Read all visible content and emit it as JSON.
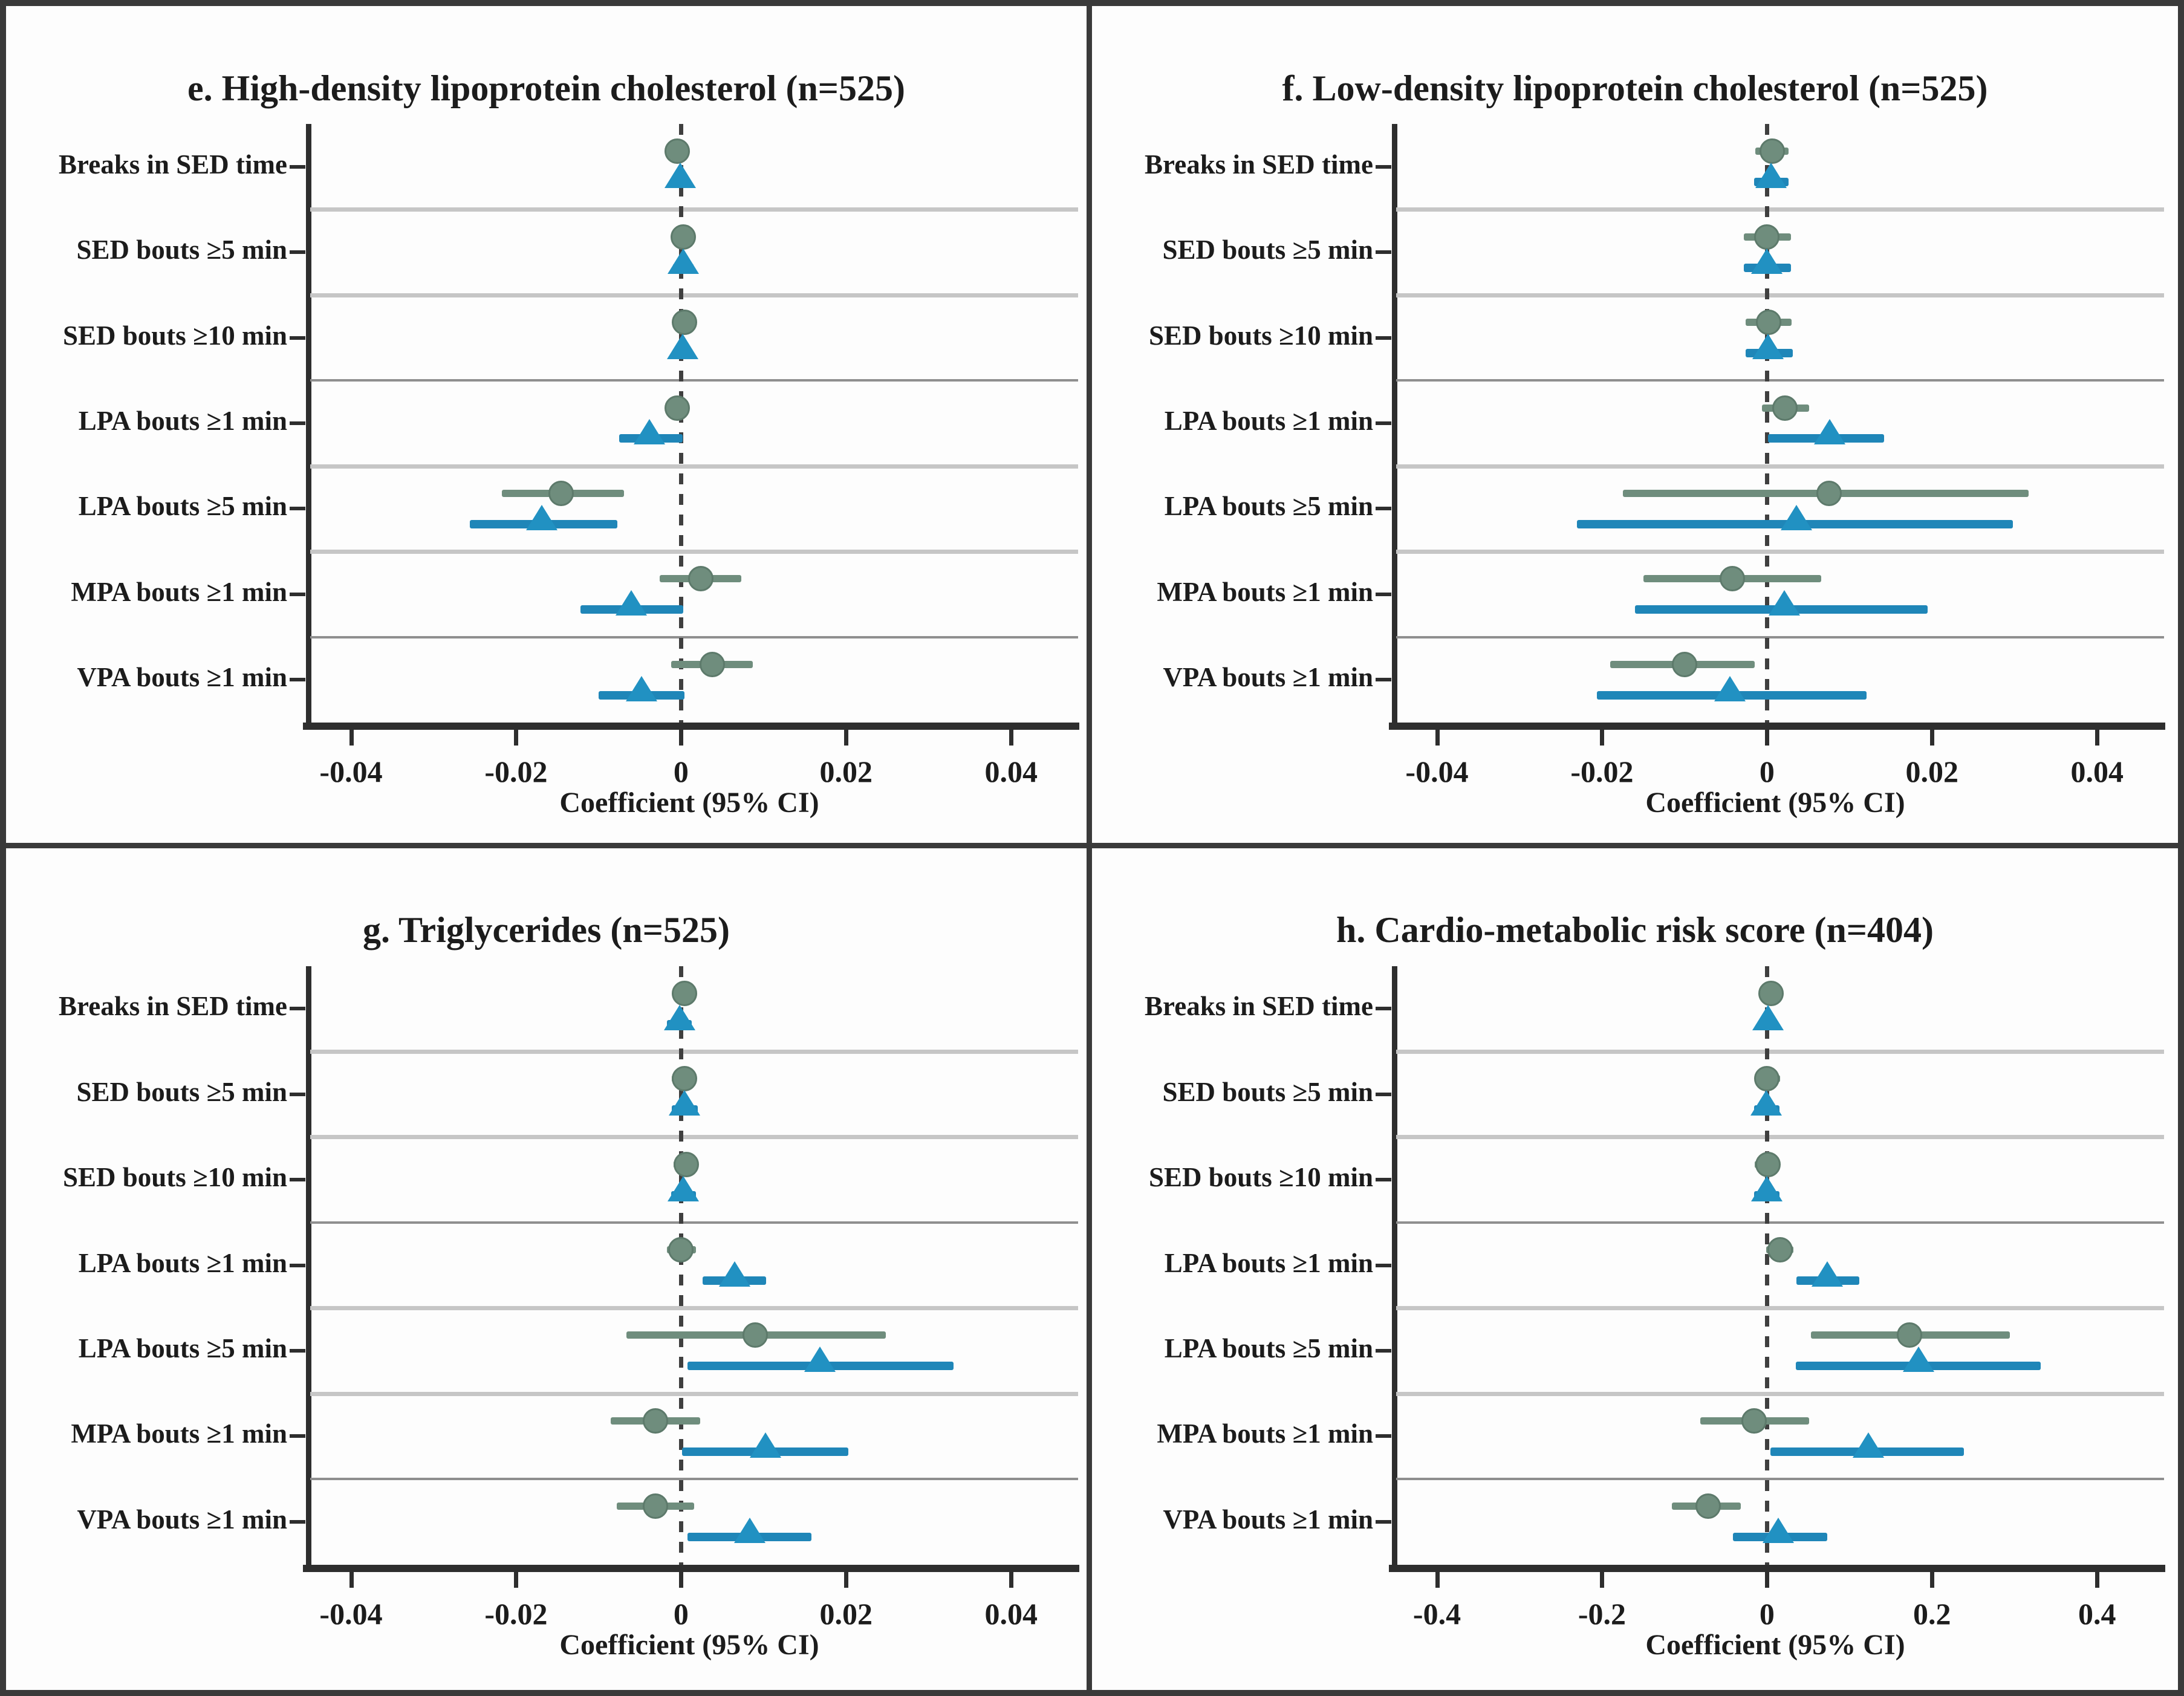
{
  "figure": {
    "xlabel": "Coefficient (95% CI)",
    "palette": {
      "circle_series_color": "#6f8d7d",
      "triangle_series_color": "#2191c2",
      "triangle_line_color": "#1f86b8",
      "zero_line_color": "#3f3f3f",
      "axis_color": "#2e2e2e",
      "separator_light": "#c6c6c6",
      "separator_dark": "#8f8f8f",
      "frame_color": "#3a3a3a",
      "panel_background": "#fdfdfd"
    }
  },
  "chart_data": [
    {
      "type": "scatter",
      "subtype": "forest-plot",
      "panel_letter": "e",
      "title": "e. High-density lipoprotein cholesterol (n=525)",
      "xlabel": "Coefficient (95% CI)",
      "xlim": [
        -0.0448,
        0.0468
      ],
      "xticks": [
        -0.04,
        -0.02,
        0,
        0.02,
        0.04
      ],
      "xtick_labels": [
        "-0.04",
        "-0.02",
        "0",
        "0.02",
        "0.04"
      ],
      "categories": [
        "Breaks in SED time",
        "SED bouts ≥5 min",
        "SED bouts ≥10 min",
        "LPA bouts ≥1 min",
        "LPA bouts ≥5 min",
        "MPA bouts ≥1 min",
        "VPA bouts ≥1 min"
      ],
      "grid": "row-separators",
      "legend": "none",
      "series": [
        {
          "name": "circle",
          "marker": "circle",
          "color": "#6f8d7d",
          "points": [
            {
              "est": -0.0005,
              "lo": -0.0015,
              "hi": 0.0008
            },
            {
              "est": 0.0003,
              "lo": -0.001,
              "hi": 0.0015
            },
            {
              "est": 0.0004,
              "lo": -0.0008,
              "hi": 0.0016
            },
            {
              "est": -0.0005,
              "lo": -0.0019,
              "hi": 0.0009
            },
            {
              "est": -0.0145,
              "lo": -0.0217,
              "hi": -0.0069
            },
            {
              "est": 0.0024,
              "lo": -0.0026,
              "hi": 0.0073
            },
            {
              "est": 0.0038,
              "lo": -0.0012,
              "hi": 0.0087
            }
          ]
        },
        {
          "name": "triangle",
          "marker": "triangle",
          "color": "#2191c2",
          "points": [
            {
              "est": -0.0001,
              "lo": -0.0013,
              "hi": 0.0011
            },
            {
              "est": 0.0003,
              "lo": -0.001,
              "hi": 0.0015
            },
            {
              "est": 0.0002,
              "lo": -0.001,
              "hi": 0.0014
            },
            {
              "est": -0.0038,
              "lo": -0.0075,
              "hi": 0.0002
            },
            {
              "est": -0.0169,
              "lo": -0.0256,
              "hi": -0.0077
            },
            {
              "est": -0.006,
              "lo": -0.0122,
              "hi": 0.0003
            },
            {
              "est": -0.0048,
              "lo": -0.01,
              "hi": 0.0004
            }
          ]
        }
      ]
    },
    {
      "type": "scatter",
      "subtype": "forest-plot",
      "panel_letter": "f",
      "title": "f. Low-density lipoprotein cholesterol (n=525)",
      "xlabel": "Coefficient (95% CI)",
      "xlim": [
        -0.0448,
        0.0468
      ],
      "xticks": [
        -0.04,
        -0.02,
        0,
        0.02,
        0.04
      ],
      "xtick_labels": [
        "-0.04",
        "-0.02",
        "0",
        "0.02",
        "0.04"
      ],
      "categories": [
        "Breaks in SED time",
        "SED bouts ≥5 min",
        "SED bouts ≥10 min",
        "LPA bouts ≥1 min",
        "LPA bouts ≥5 min",
        "MPA bouts ≥1 min",
        "VPA bouts ≥1 min"
      ],
      "grid": "row-separators",
      "legend": "none",
      "series": [
        {
          "name": "circle",
          "marker": "circle",
          "color": "#6f8d7d",
          "points": [
            {
              "est": 0.0006,
              "lo": -0.0014,
              "hi": 0.0026
            },
            {
              "est": 0.0,
              "lo": -0.0028,
              "hi": 0.0029
            },
            {
              "est": 0.0002,
              "lo": -0.0026,
              "hi": 0.003
            },
            {
              "est": 0.0022,
              "lo": -0.0006,
              "hi": 0.0051
            },
            {
              "est": 0.0075,
              "lo": -0.0175,
              "hi": 0.0317
            },
            {
              "est": -0.0042,
              "lo": -0.015,
              "hi": 0.0066
            },
            {
              "est": -0.01,
              "lo": -0.019,
              "hi": -0.0015
            }
          ]
        },
        {
          "name": "triangle",
          "marker": "triangle",
          "color": "#2191c2",
          "points": [
            {
              "est": 0.0005,
              "lo": -0.0016,
              "hi": 0.0026
            },
            {
              "est": 0.0,
              "lo": -0.0028,
              "hi": 0.0029
            },
            {
              "est": 0.0001,
              "lo": -0.0026,
              "hi": 0.0031
            },
            {
              "est": 0.0076,
              "lo": 0.0001,
              "hi": 0.0142
            },
            {
              "est": 0.0036,
              "lo": -0.023,
              "hi": 0.0298
            },
            {
              "est": 0.0021,
              "lo": -0.016,
              "hi": 0.0195
            },
            {
              "est": -0.0045,
              "lo": -0.0206,
              "hi": 0.0121
            }
          ]
        }
      ]
    },
    {
      "type": "scatter",
      "subtype": "forest-plot",
      "panel_letter": "g",
      "title": "g. Triglycerides (n=525)",
      "xlabel": "Coefficient (95% CI)",
      "xlim": [
        -0.0448,
        0.0468
      ],
      "xticks": [
        -0.04,
        -0.02,
        0,
        0.02,
        0.04
      ],
      "xtick_labels": [
        "-0.04",
        "-0.02",
        "0",
        "0.02",
        "0.04"
      ],
      "categories": [
        "Breaks in SED time",
        "SED bouts ≥5 min",
        "SED bouts ≥10 min",
        "LPA bouts ≥1 min",
        "LPA bouts ≥5 min",
        "MPA bouts ≥1 min",
        "VPA bouts ≥1 min"
      ],
      "grid": "row-separators",
      "legend": "none",
      "series": [
        {
          "name": "circle",
          "marker": "circle",
          "color": "#6f8d7d",
          "points": [
            {
              "est": 0.0004,
              "lo": -0.0007,
              "hi": 0.0015
            },
            {
              "est": 0.0004,
              "lo": -0.0011,
              "hi": 0.0019
            },
            {
              "est": 0.0006,
              "lo": -0.0009,
              "hi": 0.0021
            },
            {
              "est": 0.0,
              "lo": -0.0017,
              "hi": 0.0018
            },
            {
              "est": 0.009,
              "lo": -0.0066,
              "hi": 0.0248
            },
            {
              "est": -0.0031,
              "lo": -0.0085,
              "hi": 0.0023
            },
            {
              "est": -0.0031,
              "lo": -0.0078,
              "hi": 0.0016
            }
          ]
        },
        {
          "name": "triangle",
          "marker": "triangle",
          "color": "#2191c2",
          "points": [
            {
              "est": -0.0002,
              "lo": -0.0017,
              "hi": 0.0013
            },
            {
              "est": 0.0004,
              "lo": -0.0011,
              "hi": 0.002
            },
            {
              "est": 0.0003,
              "lo": -0.0012,
              "hi": 0.0018
            },
            {
              "est": 0.0065,
              "lo": 0.0026,
              "hi": 0.0103
            },
            {
              "est": 0.0168,
              "lo": 0.0008,
              "hi": 0.033
            },
            {
              "est": 0.0102,
              "lo": 0.0001,
              "hi": 0.0203
            },
            {
              "est": 0.0083,
              "lo": 0.0008,
              "hi": 0.0158
            }
          ]
        }
      ]
    },
    {
      "type": "scatter",
      "subtype": "forest-plot",
      "panel_letter": "h",
      "title": "h. Cardio-metabolic risk score (n=404)",
      "xlabel": "Coefficient (95% CI)",
      "xlim": [
        -0.448,
        0.468
      ],
      "xticks": [
        -0.4,
        -0.2,
        0,
        0.2,
        0.4
      ],
      "xtick_labels": [
        "-0.4",
        "-0.2",
        "0",
        "0.2",
        "0.4"
      ],
      "categories": [
        "Breaks in SED time",
        "SED bouts ≥5 min",
        "SED bouts ≥10 min",
        "LPA bouts ≥1 min",
        "LPA bouts ≥5 min",
        "MPA bouts ≥1 min",
        "VPA bouts ≥1 min"
      ],
      "grid": "row-separators",
      "legend": "none",
      "series": [
        {
          "name": "circle",
          "marker": "circle",
          "color": "#6f8d7d",
          "points": [
            {
              "est": 0.005,
              "lo": -0.004,
              "hi": 0.014
            },
            {
              "est": 0.0,
              "lo": -0.015,
              "hi": 0.016
            },
            {
              "est": 0.001,
              "lo": -0.015,
              "hi": 0.016
            },
            {
              "est": 0.016,
              "lo": -0.001,
              "hi": 0.032
            },
            {
              "est": 0.173,
              "lo": 0.053,
              "hi": 0.294
            },
            {
              "est": -0.016,
              "lo": -0.081,
              "hi": 0.051
            },
            {
              "est": -0.071,
              "lo": -0.115,
              "hi": -0.032
            }
          ]
        },
        {
          "name": "triangle",
          "marker": "triangle",
          "color": "#2191c2",
          "points": [
            {
              "est": 0.001,
              "lo": -0.009,
              "hi": 0.011
            },
            {
              "est": -0.001,
              "lo": -0.016,
              "hi": 0.015
            },
            {
              "est": 0.0,
              "lo": -0.016,
              "hi": 0.015
            },
            {
              "est": 0.073,
              "lo": 0.036,
              "hi": 0.112
            },
            {
              "est": 0.184,
              "lo": 0.035,
              "hi": 0.332
            },
            {
              "est": 0.123,
              "lo": 0.004,
              "hi": 0.239
            },
            {
              "est": 0.014,
              "lo": -0.041,
              "hi": 0.073
            }
          ]
        }
      ]
    }
  ]
}
